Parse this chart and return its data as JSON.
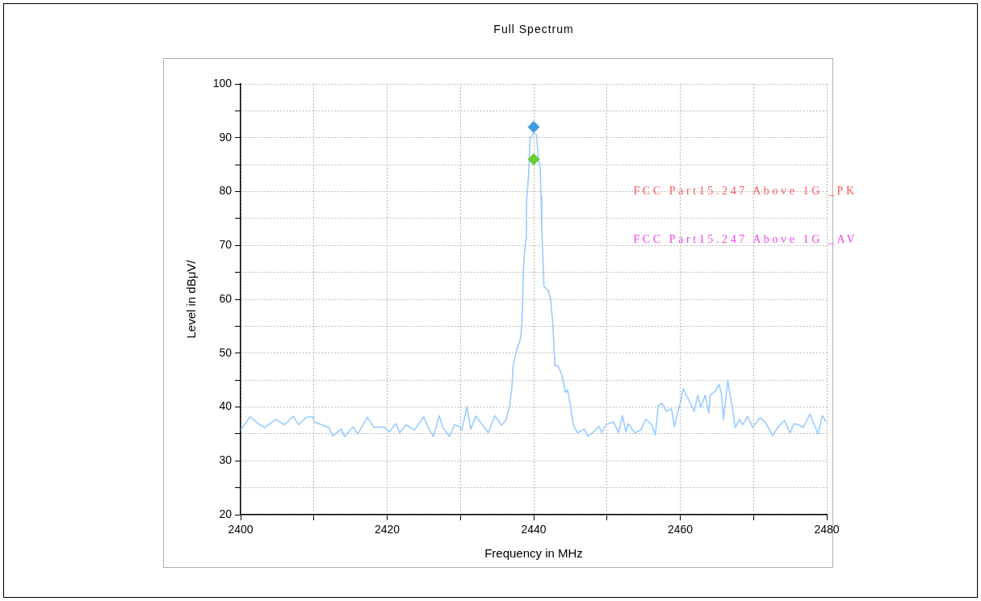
{
  "chart_data": {
    "type": "line",
    "title": "Full Spectrum",
    "xlabel": "Frequency in MHz",
    "ylabel": "Level in dBμV/",
    "xlim": [
      2400,
      2480
    ],
    "ylim": [
      20,
      100
    ],
    "xticks": [
      2400,
      {
        "value": 2410,
        "label": null
      },
      2420,
      {
        "value": 2430,
        "label": null
      },
      2440,
      {
        "value": 2450,
        "label": null
      },
      2460,
      {
        "value": 2470,
        "label": null
      },
      2480
    ],
    "yticks": [
      20,
      {
        "value": 25,
        "label": null
      },
      30,
      {
        "value": 35,
        "label": null
      },
      40,
      {
        "value": 45,
        "label": null
      },
      50,
      {
        "value": 55,
        "label": null
      },
      60,
      {
        "value": 65,
        "label": null
      },
      70,
      {
        "value": 75,
        "label": null
      },
      80,
      {
        "value": 85,
        "label": null
      },
      90,
      {
        "value": 95,
        "label": null
      },
      100
    ],
    "grid": true,
    "legend": false,
    "annotations": [
      "FCC Part15.247 Above 1G _PK",
      "FCC Part15.247 Above 1G _AV"
    ],
    "series": [
      {
        "color": "#99ccff",
        "marker": "none",
        "line_style": "solid",
        "x": [
          2400.0,
          2401.3,
          2402.4,
          2403.3,
          2404.8,
          2406.0,
          2407.2,
          2407.9,
          2409.0,
          2409.8,
          2410.1,
          2412.0,
          2412.6,
          2413.7,
          2414.2,
          2415.3,
          2416.0,
          2417.3,
          2418.2,
          2419.5,
          2420.3,
          2421.2,
          2421.7,
          2422.6,
          2423.7,
          2425.0,
          2425.6,
          2426.3,
          2427.1,
          2427.6,
          2428.5,
          2429.2,
          2429.8,
          2430.2,
          2430.9,
          2431.4,
          2432.1,
          2433.0,
          2433.8,
          2434.7,
          2435.6,
          2436.2,
          2436.7,
          2437.0,
          2437.2,
          2437.7,
          2438.2,
          2438.4,
          2438.6,
          2438.9,
          2439.0,
          2439.3,
          2439.5,
          2439.9,
          2440.4,
          2440.6,
          2440.9,
          2441.0,
          2441.1,
          2441.3,
          2441.4,
          2442.0,
          2442.3,
          2442.6,
          2442.9,
          2443.2,
          2443.4,
          2443.9,
          2444.3,
          2444.6,
          2445.0,
          2445.4,
          2446.0,
          2446.9,
          2447.4,
          2448.2,
          2448.9,
          2449.3,
          2449.8,
          2450.9,
          2451.6,
          2452.1,
          2452.6,
          2452.9,
          2453.8,
          2454.6,
          2455.3,
          2456.1,
          2456.6,
          2457.0,
          2457.5,
          2458.1,
          2458.8,
          2459.2,
          2459.7,
          2460.1,
          2460.4,
          2461.2,
          2461.9,
          2462.4,
          2462.8,
          2463.4,
          2463.9,
          2464.1,
          2464.8,
          2465.3,
          2465.6,
          2465.9,
          2466.1,
          2466.5,
          2466.8,
          2467.2,
          2467.5,
          2468.1,
          2468.5,
          2469.2,
          2469.9,
          2470.9,
          2471.6,
          2472.6,
          2473.3,
          2474.2,
          2475.0,
          2475.5,
          2476.1,
          2476.8,
          2477.7,
          2478.3,
          2478.8,
          2479.4,
          2479.9
        ],
        "values": [
          35.7,
          38.2,
          36.9,
          36.2,
          37.7,
          36.7,
          38.3,
          36.7,
          38.1,
          38.2,
          37.2,
          36.2,
          34.6,
          35.9,
          34.5,
          36.3,
          35.0,
          38.1,
          36.2,
          36.3,
          35.4,
          36.9,
          35.2,
          36.7,
          35.7,
          38.2,
          36.2,
          34.5,
          38.4,
          36.2,
          34.5,
          36.7,
          36.4,
          35.7,
          40.1,
          35.9,
          38.3,
          36.7,
          35.2,
          38.4,
          36.6,
          37.5,
          40.2,
          43.2,
          47.7,
          50.7,
          52.7,
          55.7,
          65.7,
          71.1,
          77.6,
          83.1,
          89.7,
          90.8,
          90.6,
          86.7,
          84.1,
          79.1,
          73.1,
          66.1,
          62.4,
          61.6,
          60.1,
          55.7,
          47.7,
          47.7,
          47.4,
          45.7,
          42.7,
          43.2,
          40.4,
          36.7,
          35.2,
          35.9,
          34.6,
          35.4,
          36.4,
          35.2,
          36.7,
          37.2,
          35.2,
          38.4,
          35.4,
          36.9,
          35.2,
          35.7,
          37.7,
          36.7,
          34.8,
          40.2,
          40.7,
          39.2,
          39.7,
          36.4,
          39.2,
          41.2,
          43.4,
          41.2,
          39.2,
          42.2,
          39.9,
          42.2,
          38.9,
          42.2,
          42.9,
          44.2,
          42.7,
          37.7,
          40.2,
          44.9,
          42.2,
          39.2,
          36.2,
          37.7,
          36.7,
          38.2,
          36.2,
          38.0,
          37.2,
          34.7,
          36.2,
          37.5,
          35.2,
          36.9,
          36.7,
          36.2,
          38.7,
          36.7,
          35.0,
          38.4,
          37.2
        ]
      },
      {
        "type": "scatter",
        "color": "#3d9be0",
        "marker": "diamond",
        "x": [
          2440
        ],
        "values": [
          92
        ]
      },
      {
        "type": "scatter",
        "color": "#66cc33",
        "marker": "diamond",
        "x": [
          2440
        ],
        "values": [
          86
        ]
      }
    ]
  }
}
